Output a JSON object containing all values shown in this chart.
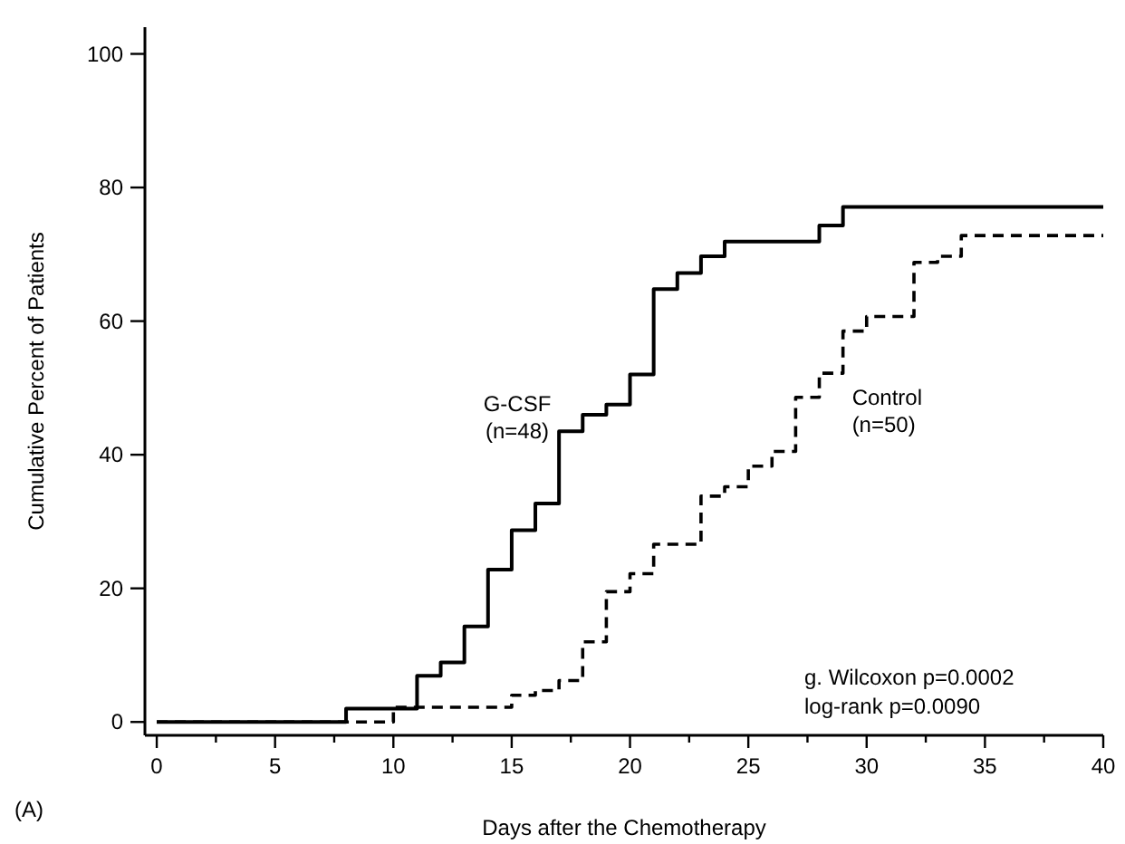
{
  "chart_data": {
    "type": "step",
    "xlabel": "Days after the Chemotherapy",
    "ylabel": "Cumulative Percent of Patients",
    "xlim": [
      -0.5,
      40
    ],
    "ylim": [
      -2,
      104
    ],
    "xticks": [
      0,
      {
        "value": 2.5,
        "label": null
      },
      5,
      {
        "value": 7.5,
        "label": null
      },
      10,
      {
        "value": 12.5,
        "label": null
      },
      15,
      {
        "value": 17.5,
        "label": null
      },
      20,
      {
        "value": 22.5,
        "label": null
      },
      25,
      {
        "value": 27.5,
        "label": null
      },
      30,
      {
        "value": 32.5,
        "label": null
      },
      35,
      {
        "value": 37.5,
        "label": null
      },
      40
    ],
    "yticks": [
      0,
      20,
      40,
      60,
      80,
      100
    ],
    "grid": false,
    "series": [
      {
        "name": "G-CSF (n=48)",
        "color": "#000000",
        "line_style": "solid",
        "x": [
          0,
          8,
          11,
          12,
          13,
          14,
          15,
          16,
          17,
          18,
          19,
          20,
          21,
          22,
          23,
          24,
          28,
          29,
          40
        ],
        "values": [
          0,
          2,
          6.9,
          8.9,
          14.3,
          22.8,
          28.7,
          32.7,
          43.5,
          46,
          47.5,
          52,
          64.8,
          67.2,
          69.7,
          71.9,
          74.3,
          77.1,
          77.1
        ]
      },
      {
        "name": "Control (n=50)",
        "color": "#000000",
        "line_style": "dashed",
        "x": [
          0,
          10,
          15,
          16,
          17,
          18,
          19,
          20,
          21,
          23,
          24,
          25,
          26,
          27,
          28,
          29,
          30,
          32,
          33,
          34,
          40
        ],
        "values": [
          0,
          2.2,
          4,
          4.7,
          6.2,
          12,
          19.5,
          22.2,
          26.6,
          33.8,
          35.2,
          38.3,
          40.5,
          48.6,
          52.2,
          58.5,
          60.7,
          68.8,
          69.7,
          72.8,
          72.8
        ]
      }
    ],
    "annotations": [
      "g. Wilcoxon p=0.0002",
      "log-rank p=0.0090",
      "(A)"
    ]
  }
}
